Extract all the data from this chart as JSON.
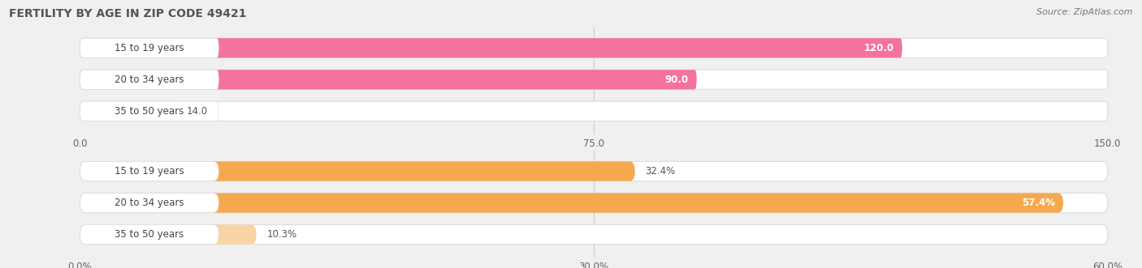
{
  "title": "FERTILITY BY AGE IN ZIP CODE 49421",
  "source": "Source: ZipAtlas.com",
  "top_chart": {
    "categories": [
      "15 to 19 years",
      "20 to 34 years",
      "35 to 50 years"
    ],
    "values": [
      120.0,
      90.0,
      14.0
    ],
    "xlim": [
      0,
      150
    ],
    "xticks": [
      0.0,
      75.0,
      150.0
    ],
    "xtick_labels": [
      "0.0",
      "75.0",
      "150.0"
    ],
    "bar_colors": [
      "#F472A0",
      "#F472A0",
      "#F9B8CF"
    ],
    "value_labels": [
      "120.0",
      "90.0",
      "14.0"
    ],
    "value_label_inside": [
      true,
      true,
      false
    ]
  },
  "bottom_chart": {
    "categories": [
      "15 to 19 years",
      "20 to 34 years",
      "35 to 50 years"
    ],
    "values": [
      32.4,
      57.4,
      10.3
    ],
    "xlim": [
      0,
      60
    ],
    "xticks": [
      0.0,
      30.0,
      60.0
    ],
    "xtick_labels": [
      "0.0%",
      "30.0%",
      "60.0%"
    ],
    "bar_colors": [
      "#F5A94E",
      "#F5A94E",
      "#FAD4A5"
    ],
    "value_labels": [
      "32.4%",
      "57.4%",
      "10.3%"
    ],
    "value_label_inside": [
      false,
      true,
      false
    ]
  },
  "background_color": "#f0f0f0",
  "bar_bg_color": "#ffffff",
  "bar_border_color": "#dddddd",
  "label_fontsize": 8.5,
  "title_fontsize": 10,
  "source_fontsize": 8,
  "title_color": "#555555",
  "source_color": "#777777"
}
